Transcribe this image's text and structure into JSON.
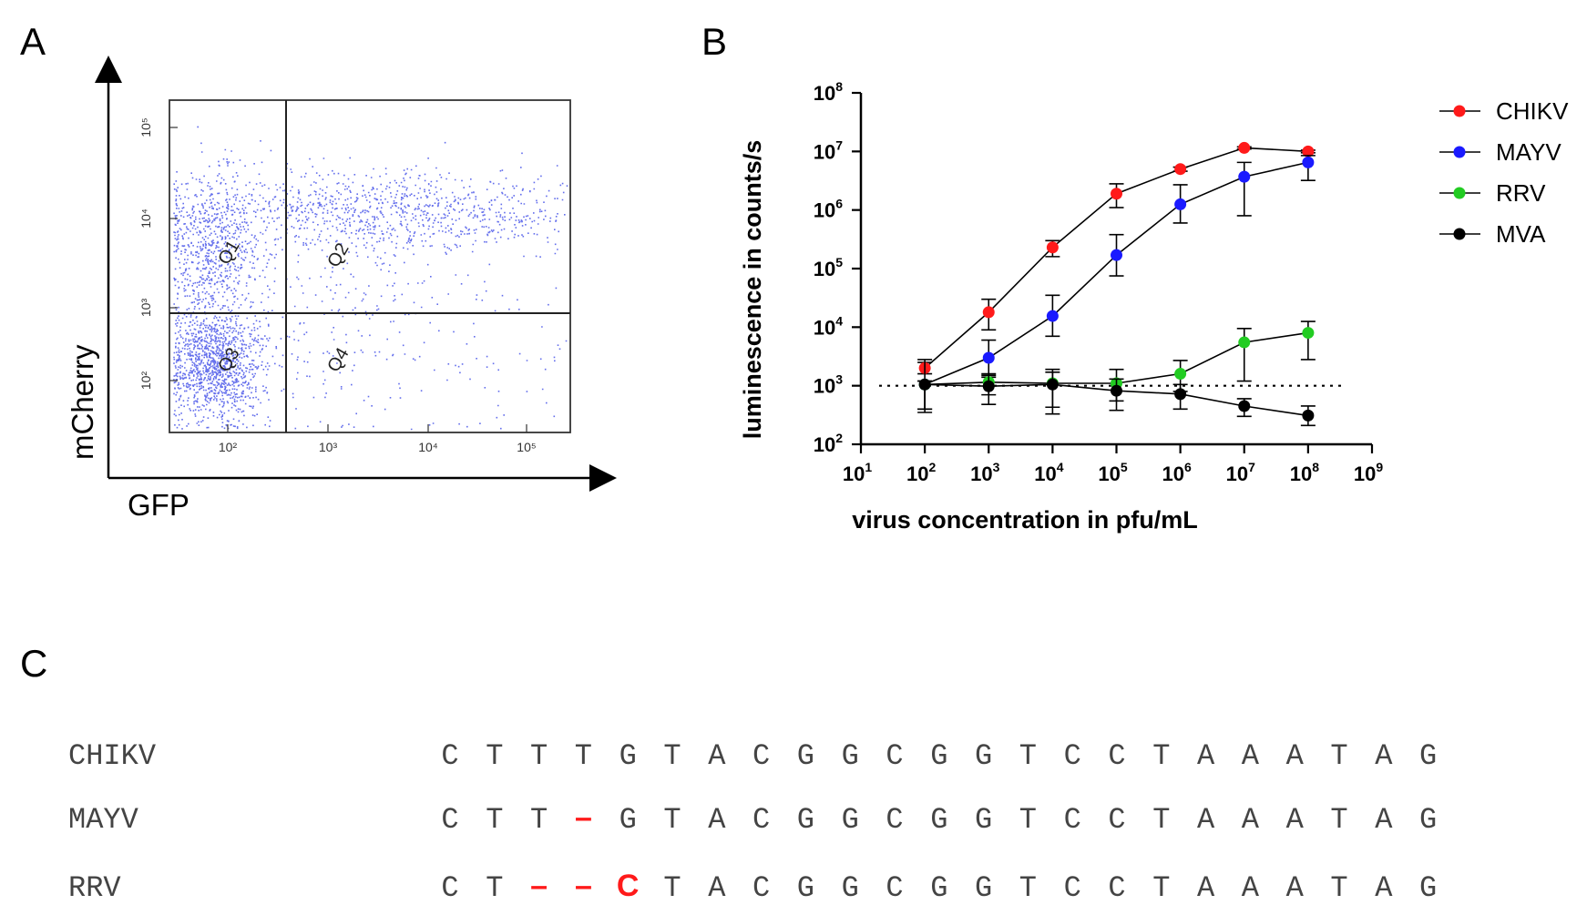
{
  "panels": {
    "a": "A",
    "b": "B",
    "c": "C"
  },
  "chart_data": [
    {
      "type": "scatter",
      "panel": "A",
      "xlabel": "GFP",
      "ylabel": "mCherry",
      "x_scale": "log",
      "y_scale": "log",
      "x_tick_labels": [
        "10²",
        "10³",
        "10⁴",
        "10⁵"
      ],
      "y_tick_labels": [
        "10²",
        "10³",
        "10⁴",
        "10⁵"
      ],
      "quadrants": [
        "Q1",
        "Q2",
        "Q3",
        "Q4"
      ],
      "point_color": "#2f3ee6",
      "gate_x": 400,
      "gate_y": 1000
    },
    {
      "type": "line",
      "panel": "B",
      "x_scale": "log",
      "y_scale": "log",
      "xlim": [
        10,
        1000000000
      ],
      "ylim": [
        100,
        100000000
      ],
      "xlabel": "virus concentration in pfu/mL",
      "ylabel": "luminescence in counts/s",
      "x_tick_exponents": [
        "1",
        "2",
        "3",
        "4",
        "5",
        "6",
        "7",
        "8",
        "9"
      ],
      "y_tick_exponents": [
        "2",
        "3",
        "4",
        "5",
        "6",
        "7",
        "8"
      ],
      "tick_base": "10",
      "x": [
        100,
        1000,
        10000,
        100000,
        1000000,
        10000000,
        100000000
      ],
      "threshold": 1000,
      "legend_position": "right",
      "series": [
        {
          "name": "CHIKV",
          "color": "#ff1a1a",
          "values": [
            2000,
            18000,
            230000,
            1900000,
            5000000,
            11500000,
            10000000
          ],
          "err_low": [
            1600,
            9000,
            160000,
            1100000,
            4600000,
            11000000,
            9500000
          ],
          "err_high": [
            2500,
            30000,
            300000,
            2800000,
            5400000,
            12000000,
            10500000
          ]
        },
        {
          "name": "MAYV",
          "color": "#1a1aff",
          "values": [
            1050,
            3000,
            15500,
            170000,
            1250000,
            3700000,
            6500000
          ],
          "err_low": [
            400,
            1500,
            7000,
            75000,
            600000,
            800000,
            3200000
          ],
          "err_high": [
            2800,
            6000,
            35000,
            380000,
            2700000,
            6500000,
            8500000
          ]
        },
        {
          "name": "RRV",
          "color": "#22cc22",
          "values": [
            1050,
            1150,
            1100,
            1100,
            1600,
            5500,
            8000
          ],
          "err_low": [
            400,
            700,
            330,
            550,
            800,
            1200,
            2800
          ],
          "err_high": [
            1200,
            1400,
            1700,
            1900,
            2700,
            9500,
            12500
          ]
        },
        {
          "name": "MVA",
          "color": "#000000",
          "values": [
            1050,
            980,
            1050,
            820,
            720,
            450,
            310
          ],
          "err_low": [
            350,
            480,
            430,
            380,
            400,
            300,
            210
          ],
          "err_high": [
            1200,
            1600,
            1900,
            1300,
            1050,
            600,
            450
          ]
        }
      ]
    }
  ],
  "alignment": {
    "rows": [
      {
        "label": "CHIKV",
        "bases": [
          "C",
          "T",
          "T",
          "T",
          "G",
          "T",
          "A",
          "C",
          "G",
          "G",
          "C",
          "G",
          "G",
          "T",
          "C",
          "C",
          "T",
          "A",
          "A",
          "A",
          "T",
          "A",
          "G"
        ],
        "highlight": []
      },
      {
        "label": "MAYV",
        "bases": [
          "C",
          "T",
          "T",
          "–",
          "G",
          "T",
          "A",
          "C",
          "G",
          "G",
          "C",
          "G",
          "G",
          "T",
          "C",
          "C",
          "T",
          "A",
          "A",
          "A",
          "T",
          "A",
          "G"
        ],
        "highlight": [
          3
        ]
      },
      {
        "label": "RRV",
        "bases": [
          "C",
          "T",
          "–",
          "–",
          "C",
          "T",
          "A",
          "C",
          "G",
          "G",
          "C",
          "G",
          "G",
          "T",
          "C",
          "C",
          "T",
          "A",
          "A",
          "A",
          "T",
          "A",
          "G"
        ],
        "highlight": [
          2,
          3,
          4
        ]
      }
    ],
    "highlight_color": "#ff1a1a"
  }
}
